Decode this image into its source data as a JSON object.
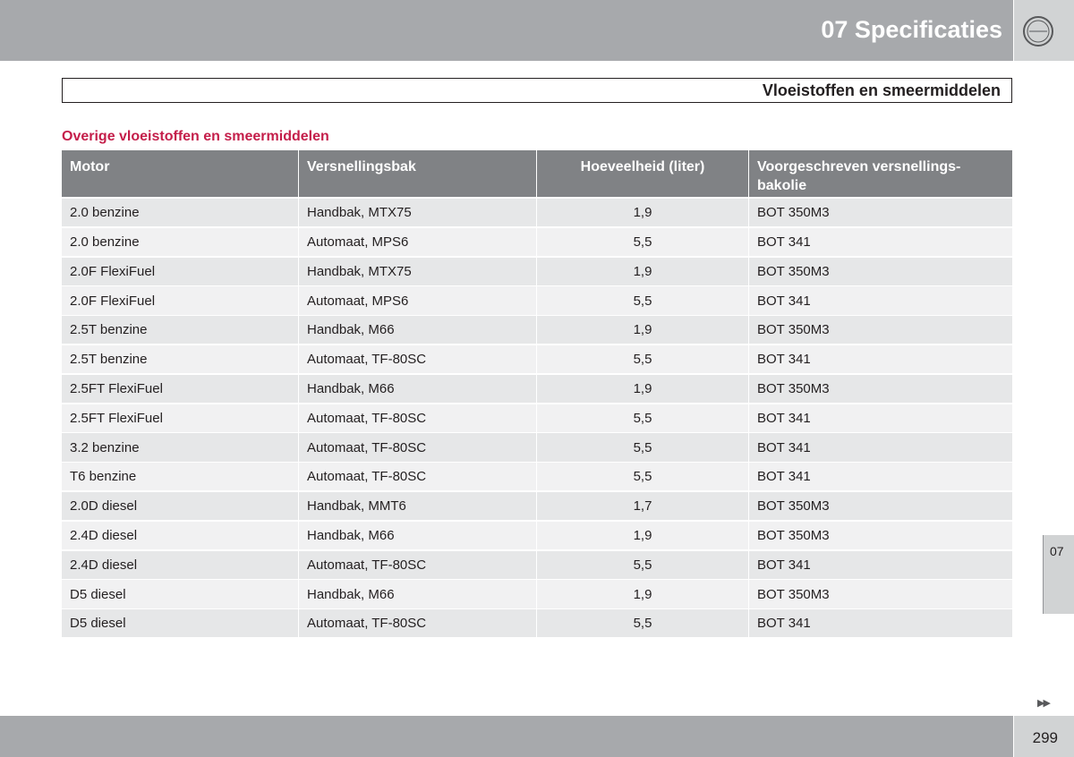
{
  "header": {
    "title": "07 Specificaties"
  },
  "section_title": "Vloeistoffen en smeermiddelen",
  "subtitle": "Overige vloeistoffen en smeermiddelen",
  "table": {
    "columns": [
      "Motor",
      "Versnellingsbak",
      "Hoeveelheid (liter)",
      "Voorgeschreven versnellings-bakolie"
    ],
    "rows": [
      [
        "2.0 benzine",
        "Handbak, MTX75",
        "1,9",
        "BOT 350M3"
      ],
      [
        "2.0 benzine",
        "Automaat, MPS6",
        "5,5",
        "BOT 341"
      ],
      [
        "2.0F FlexiFuel",
        "Handbak, MTX75",
        "1,9",
        "BOT 350M3"
      ],
      [
        "2.0F FlexiFuel",
        "Automaat, MPS6",
        "5,5",
        "BOT 341"
      ],
      [
        "2.5T benzine",
        "Handbak, M66",
        "1,9",
        "BOT 350M3"
      ],
      [
        "2.5T benzine",
        "Automaat, TF-80SC",
        "5,5",
        "BOT 341"
      ],
      [
        "2.5FT FlexiFuel",
        "Handbak, M66",
        "1,9",
        "BOT 350M3"
      ],
      [
        "2.5FT FlexiFuel",
        "Automaat, TF-80SC",
        "5,5",
        "BOT 341"
      ],
      [
        "3.2 benzine",
        "Automaat, TF-80SC",
        "5,5",
        "BOT 341"
      ],
      [
        "T6 benzine",
        "Automaat, TF-80SC",
        "5,5",
        "BOT 341"
      ],
      [
        "2.0D diesel",
        "Handbak, MMT6",
        "1,7",
        "BOT 350M3"
      ],
      [
        "2.4D diesel",
        "Handbak, M66",
        "1,9",
        "BOT 350M3"
      ],
      [
        "2.4D diesel",
        "Automaat, TF-80SC",
        "5,5",
        "BOT 341"
      ],
      [
        "D5 diesel",
        "Handbak, M66",
        "1,9",
        "BOT 350M3"
      ],
      [
        "D5 diesel",
        "Automaat, TF-80SC",
        "5,5",
        "BOT 341"
      ]
    ]
  },
  "side_tab": "07",
  "page_number": "299"
}
